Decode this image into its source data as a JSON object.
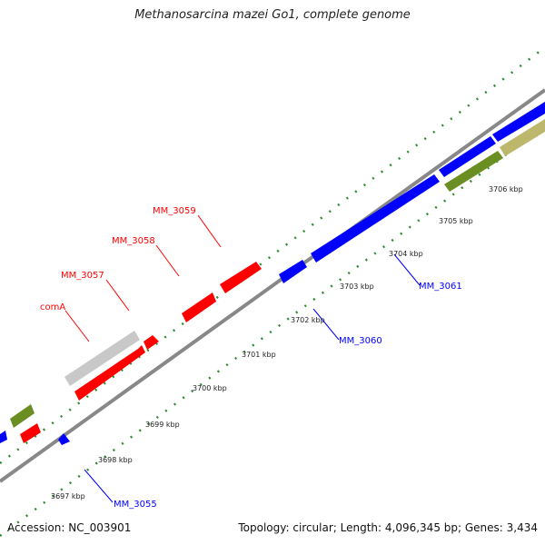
{
  "title": "Methanosarcina mazei Go1, complete genome",
  "accession": "Accession: NC_003901",
  "stats": "Topology: circular; Length: 4,096,345 bp; Genes: 3,434",
  "tick_labels": [
    "3697 kbp",
    "3698 kbp",
    "3699 kbp",
    "3700 kbp",
    "3701 kbp",
    "3702 kbp",
    "3703 kbp",
    "3704 kbp",
    "3705 kbp",
    "3706 kbp"
  ],
  "gene_labels": {
    "comA": "comA",
    "mm3057": "MM_3057",
    "mm3058": "MM_3058",
    "mm3059": "MM_3059",
    "mm3060": "MM_3060",
    "mm3061": "MM_3061",
    "mm3055": "MM_3055"
  },
  "colors": {
    "forward_cds": "#ff0000",
    "reverse_cds": "#0000ff",
    "olive": "#6b8e23",
    "khaki": "#bdb76b",
    "gray_feature": "#c8c8c8",
    "backbone": "#888888",
    "dots": "#2e8b2e"
  }
}
